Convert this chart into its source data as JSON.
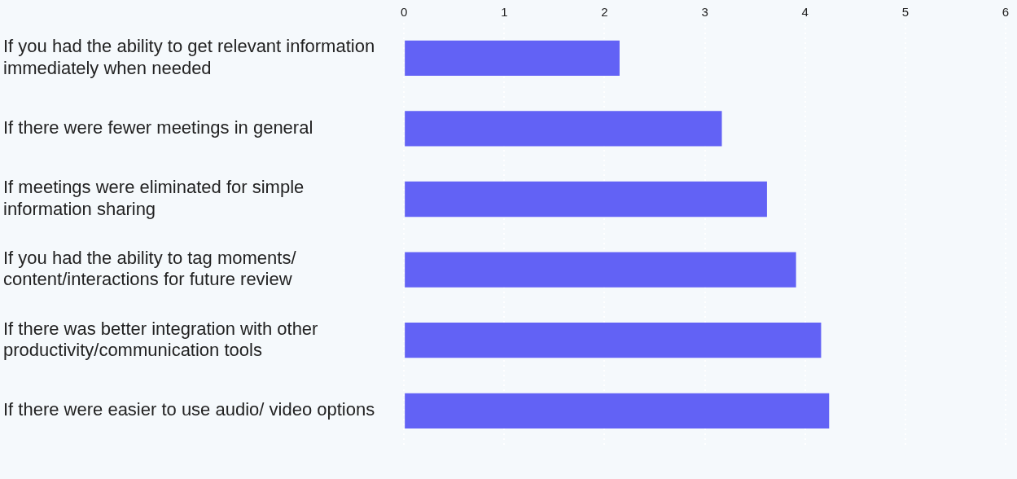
{
  "chart_data": {
    "type": "bar",
    "orientation": "horizontal",
    "categories": [
      "If you had the ability to get relevant information immediately when needed",
      "If there were fewer meetings in general",
      "If meetings were eliminated for simple information sharing",
      "If you had the ability to tag moments/ content/interactions for future review",
      "If there was better integration with other productivity/communication tools",
      "If there were easier to use audio/ video options"
    ],
    "values": [
      2.15,
      3.17,
      3.62,
      3.91,
      4.16,
      4.24
    ],
    "color": "#6262f5",
    "xlim": [
      0,
      6
    ],
    "xticks": [
      0,
      1,
      2,
      3,
      4,
      5,
      6
    ],
    "grid": "x"
  }
}
